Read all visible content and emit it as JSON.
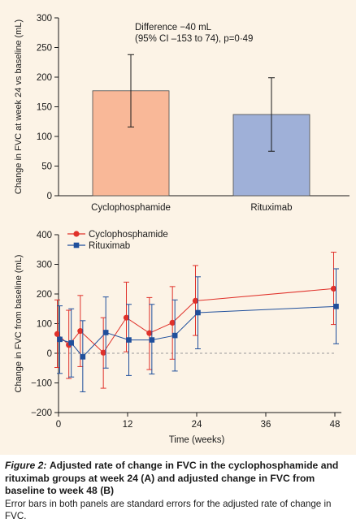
{
  "chart_data": [
    {
      "type": "bar",
      "ylabel": "Change in FVC at week 24 vs baseline (mL)",
      "ylim": [
        0,
        300
      ],
      "yticks": [
        0,
        50,
        100,
        150,
        200,
        250,
        300
      ],
      "categories": [
        "Cyclophosphamide",
        "Rituximab"
      ],
      "values": [
        177,
        137
      ],
      "error_low": [
        116,
        75
      ],
      "error_high": [
        238,
        199
      ],
      "colors": [
        "#f9b898",
        "#9fb0d8"
      ],
      "annotation": [
        "Difference −40 mL",
        "(95% CI –153 to 74), p=0·49"
      ]
    },
    {
      "type": "line",
      "ylabel": "Change in FVC from baseline (mL)",
      "xlabel": "Time (weeks)",
      "ylim": [
        -200,
        400
      ],
      "yticks": [
        -200,
        -100,
        0,
        100,
        200,
        300,
        400
      ],
      "xlim": [
        0,
        48
      ],
      "xticks": [
        0,
        12,
        24,
        36,
        48
      ],
      "legend_position": "top-left",
      "reference_line": 0,
      "series": [
        {
          "name": "Cyclophosphamide",
          "color": "#e0312a",
          "marker": "circle",
          "x": [
            0,
            2,
            4,
            8,
            12,
            16,
            20,
            24,
            48
          ],
          "y": [
            65,
            28,
            75,
            2,
            120,
            68,
            103,
            177,
            218
          ],
          "err_low": [
            -48,
            -85,
            -45,
            -118,
            5,
            -55,
            -20,
            60,
            97
          ],
          "err_high": [
            180,
            145,
            195,
            120,
            240,
            188,
            225,
            296,
            341
          ]
        },
        {
          "name": "Rituximab",
          "color": "#1f4f9c",
          "marker": "square",
          "x": [
            0,
            2,
            4,
            8,
            12,
            16,
            20,
            24,
            48
          ],
          "y": [
            47,
            35,
            -12,
            70,
            45,
            45,
            60,
            137,
            158
          ],
          "err_low": [
            -68,
            -80,
            -130,
            -50,
            -75,
            -70,
            -60,
            15,
            32
          ],
          "err_high": [
            160,
            150,
            110,
            190,
            165,
            165,
            180,
            258,
            285
          ]
        }
      ]
    }
  ],
  "caption": {
    "label": "Figure 2:",
    "title": "Adjusted rate of change in FVC in the cyclophosphamide and rituximab groups at week 24 (A) and adjusted change in FVC from baseline to week 48 (B)",
    "note": "Error bars in both panels are standard errors for the adjusted rate of change in FVC."
  }
}
